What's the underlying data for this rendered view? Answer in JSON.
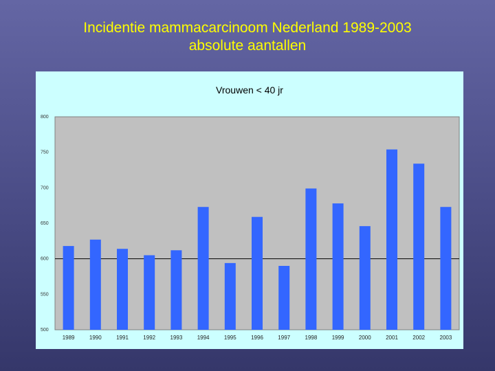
{
  "slide": {
    "title_line1": "Incidentie mammacarcinoom Nederland 1989-2003",
    "title_line2": "absolute aantallen"
  },
  "colors": {
    "title": "#ffff00",
    "panel": "#ccffff",
    "plot_area": "#c0c0c0",
    "bar": "#3366ff"
  },
  "chart_data": {
    "type": "bar",
    "title": "Vrouwen < 40 jr",
    "xlabel": "",
    "ylabel": "",
    "categories": [
      "1989",
      "1990",
      "1991",
      "1992",
      "1993",
      "1994",
      "1995",
      "1996",
      "1997",
      "1998",
      "1999",
      "2000",
      "2001",
      "2002",
      "2003"
    ],
    "values": [
      618,
      627,
      614,
      605,
      612,
      673,
      594,
      659,
      590,
      699,
      678,
      646,
      754,
      734,
      673
    ],
    "ylim": [
      500,
      800
    ],
    "yticks": [
      500,
      550,
      600,
      650,
      700,
      750,
      800
    ],
    "reference_line": 600,
    "grid": false,
    "legend": "none"
  }
}
